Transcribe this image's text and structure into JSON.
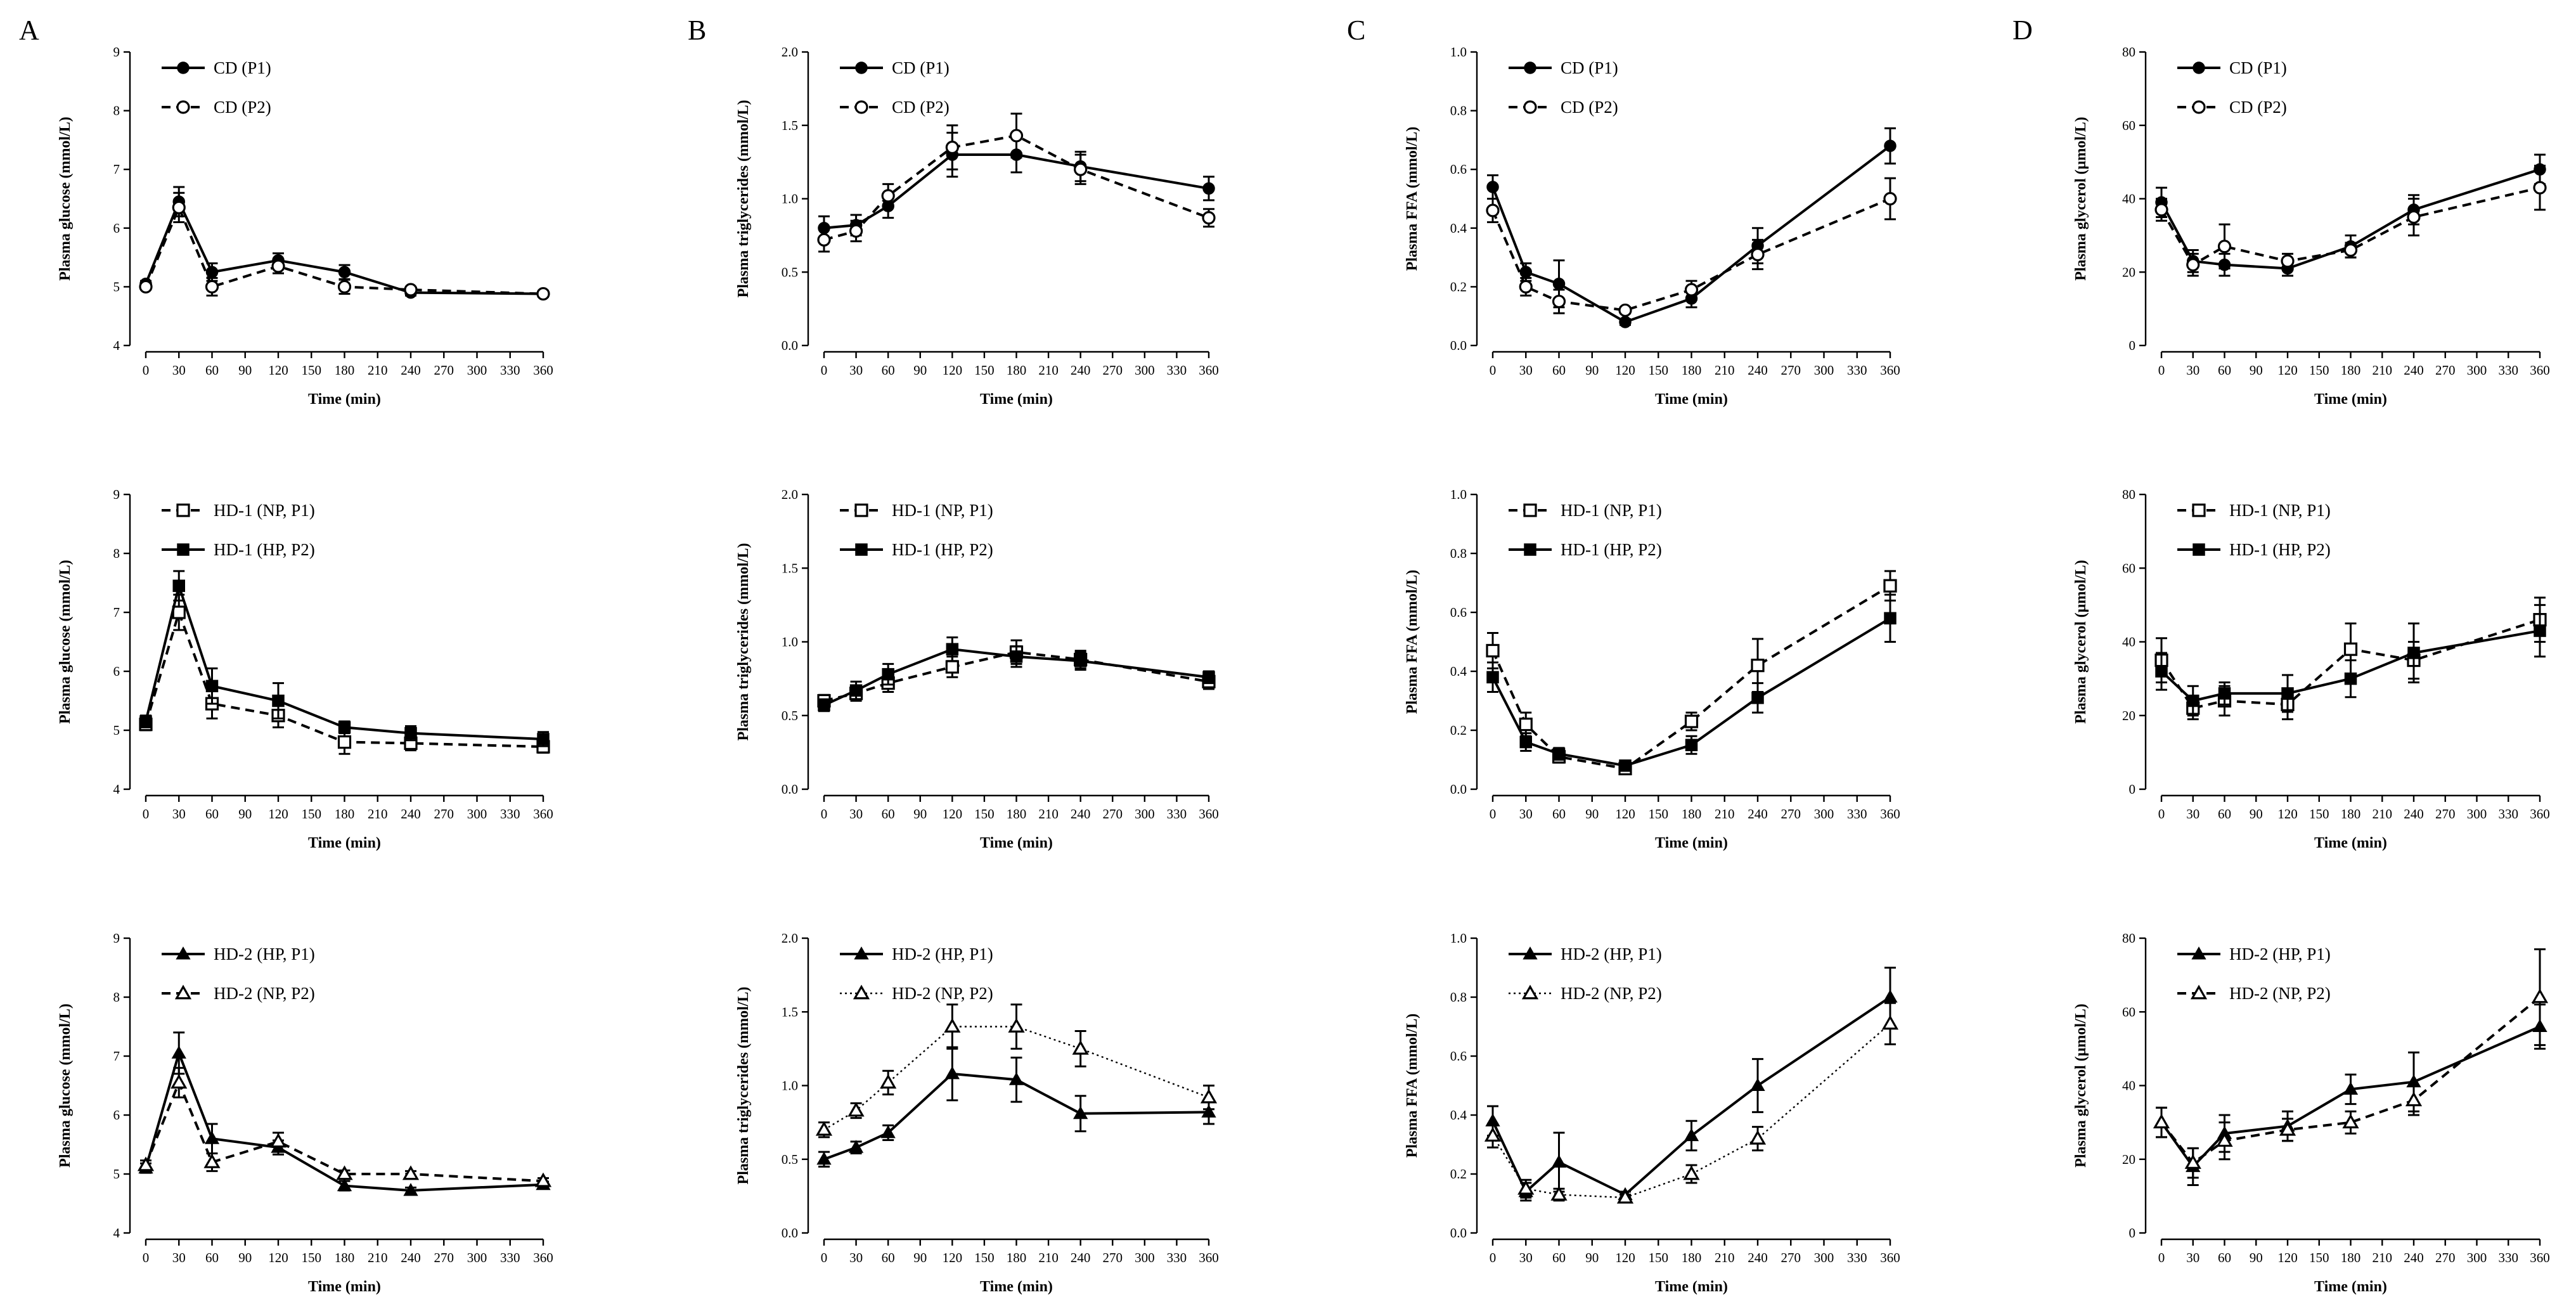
{
  "panel_labels": [
    "A",
    "B",
    "C",
    "D"
  ],
  "chart_data": [
    {
      "type": "line",
      "panel": "A",
      "row": 0,
      "title": "",
      "xlabel": "Time (min)",
      "ylabel": "Plasma glucose (mmol/L)",
      "ylim": [
        4,
        9
      ],
      "yticks": [
        "4",
        "5",
        "6",
        "7",
        "8",
        "9"
      ],
      "x": [
        0,
        30,
        60,
        120,
        180,
        240,
        360
      ],
      "xticks": [
        "0",
        "30",
        "60",
        "90",
        "120",
        "150",
        "180",
        "210",
        "240",
        "270",
        "300",
        "330",
        "360"
      ],
      "series": [
        {
          "name": "CD (P1)",
          "marker": "filled-circle",
          "dash": "solid",
          "values": [
            5.05,
            6.45,
            5.25,
            5.45,
            5.25,
            4.9,
            4.88
          ],
          "err": [
            0.05,
            0.25,
            0.15,
            0.12,
            0.12,
            0.05,
            0.05
          ]
        },
        {
          "name": "CD (P2)",
          "marker": "open-circle",
          "dash": "dashed",
          "values": [
            5.0,
            6.35,
            5.0,
            5.35,
            5.0,
            4.95,
            4.88
          ],
          "err": [
            0.05,
            0.25,
            0.15,
            0.12,
            0.12,
            0.05,
            0.05
          ]
        }
      ]
    },
    {
      "type": "line",
      "panel": "B",
      "row": 0,
      "title": "",
      "xlabel": "Time (min)",
      "ylabel": "Plasma triglycerides (mmol/L)",
      "ylim": [
        0,
        2
      ],
      "yticks": [
        "0.0",
        "0.5",
        "1.0",
        "1.5",
        "2.0"
      ],
      "x": [
        0,
        30,
        60,
        120,
        180,
        240,
        360
      ],
      "xticks": [
        "0",
        "30",
        "60",
        "90",
        "120",
        "150",
        "180",
        "210",
        "240",
        "270",
        "300",
        "330",
        "360"
      ],
      "series": [
        {
          "name": "CD (P1)",
          "marker": "filled-circle",
          "dash": "solid",
          "values": [
            0.8,
            0.82,
            0.95,
            1.3,
            1.3,
            1.22,
            1.07
          ],
          "err": [
            0.08,
            0.07,
            0.08,
            0.15,
            0.12,
            0.1,
            0.08
          ]
        },
        {
          "name": "CD (P2)",
          "marker": "open-circle",
          "dash": "dashed",
          "values": [
            0.72,
            0.78,
            1.02,
            1.35,
            1.43,
            1.2,
            0.87
          ],
          "err": [
            0.08,
            0.07,
            0.08,
            0.15,
            0.15,
            0.1,
            0.06
          ]
        }
      ]
    },
    {
      "type": "line",
      "panel": "C",
      "row": 0,
      "title": "",
      "xlabel": "Time (min)",
      "ylabel": "Plasma FFA (mmol/L)",
      "ylim": [
        0,
        1
      ],
      "yticks": [
        "0.0",
        "0.2",
        "0.4",
        "0.6",
        "0.8",
        "1.0"
      ],
      "x": [
        0,
        30,
        60,
        120,
        180,
        240,
        360
      ],
      "xticks": [
        "0",
        "30",
        "60",
        "90",
        "120",
        "150",
        "180",
        "210",
        "240",
        "270",
        "300",
        "330",
        "360"
      ],
      "series": [
        {
          "name": "CD (P1)",
          "marker": "filled-circle",
          "dash": "solid",
          "values": [
            0.54,
            0.25,
            0.21,
            0.08,
            0.16,
            0.34,
            0.68
          ],
          "err": [
            0.04,
            0.03,
            0.08,
            0.01,
            0.03,
            0.06,
            0.06
          ]
        },
        {
          "name": "CD (P2)",
          "marker": "open-circle",
          "dash": "dashed",
          "values": [
            0.46,
            0.2,
            0.15,
            0.12,
            0.19,
            0.31,
            0.5
          ],
          "err": [
            0.04,
            0.03,
            0.04,
            0.01,
            0.03,
            0.05,
            0.07
          ]
        }
      ]
    },
    {
      "type": "line",
      "panel": "D",
      "row": 0,
      "title": "",
      "xlabel": "Time (min)",
      "ylabel": "Plasma glycerol (μmol/L)",
      "ylim": [
        0,
        80
      ],
      "yticks": [
        "0",
        "20",
        "40",
        "60",
        "80"
      ],
      "x": [
        0,
        30,
        60,
        120,
        180,
        240,
        360
      ],
      "xticks": [
        "0",
        "30",
        "60",
        "90",
        "120",
        "150",
        "180",
        "210",
        "240",
        "270",
        "300",
        "330",
        "360"
      ],
      "series": [
        {
          "name": "CD (P1)",
          "marker": "filled-circle",
          "dash": "solid",
          "values": [
            39,
            23,
            22,
            21,
            27,
            37,
            48
          ],
          "err": [
            4,
            3,
            3,
            2,
            3,
            4,
            4
          ]
        },
        {
          "name": "CD (P2)",
          "marker": "open-circle",
          "dash": "dashed",
          "values": [
            37,
            22,
            27,
            23,
            26,
            35,
            43
          ],
          "err": [
            3,
            3,
            6,
            2,
            2,
            5,
            6
          ]
        }
      ]
    },
    {
      "type": "line",
      "panel": "A",
      "row": 1,
      "title": "",
      "xlabel": "Time (min)",
      "ylabel": "Plasma glucose (mmol/L)",
      "ylim": [
        4,
        9
      ],
      "yticks": [
        "4",
        "5",
        "6",
        "7",
        "8",
        "9"
      ],
      "x": [
        0,
        30,
        60,
        120,
        180,
        240,
        360
      ],
      "xticks": [
        "0",
        "30",
        "60",
        "90",
        "120",
        "150",
        "180",
        "210",
        "240",
        "270",
        "300",
        "330",
        "360"
      ],
      "series": [
        {
          "name": "HD-1 (NP, P1)",
          "marker": "open-square",
          "dash": "dashed",
          "values": [
            5.1,
            7.0,
            5.45,
            5.25,
            4.8,
            4.78,
            4.72
          ],
          "err": [
            0.1,
            0.3,
            0.25,
            0.2,
            0.2,
            0.12,
            0.1
          ]
        },
        {
          "name": "HD-1 (HP, P2)",
          "marker": "filled-square",
          "dash": "solid",
          "values": [
            5.15,
            7.45,
            5.75,
            5.5,
            5.05,
            4.95,
            4.85
          ],
          "err": [
            0.1,
            0.25,
            0.3,
            0.3,
            0.1,
            0.12,
            0.12
          ]
        }
      ]
    },
    {
      "type": "line",
      "panel": "B",
      "row": 1,
      "title": "",
      "xlabel": "Time (min)",
      "ylabel": "Plasma triglycerides (mmol/L)",
      "ylim": [
        0,
        2
      ],
      "yticks": [
        "0.0",
        "0.5",
        "1.0",
        "1.5",
        "2.0"
      ],
      "x": [
        0,
        30,
        60,
        120,
        180,
        240,
        360
      ],
      "xticks": [
        "0",
        "30",
        "60",
        "90",
        "120",
        "150",
        "180",
        "210",
        "240",
        "270",
        "300",
        "330",
        "360"
      ],
      "series": [
        {
          "name": "HD-1 (NP, P1)",
          "marker": "open-square",
          "dash": "dashed",
          "values": [
            0.6,
            0.65,
            0.72,
            0.83,
            0.93,
            0.88,
            0.73
          ],
          "err": [
            0.04,
            0.05,
            0.06,
            0.07,
            0.08,
            0.06,
            0.05
          ]
        },
        {
          "name": "HD-1 (HP, P2)",
          "marker": "filled-square",
          "dash": "solid",
          "values": [
            0.57,
            0.67,
            0.78,
            0.95,
            0.9,
            0.87,
            0.76
          ],
          "err": [
            0.04,
            0.06,
            0.07,
            0.08,
            0.07,
            0.06,
            0.04
          ]
        }
      ]
    },
    {
      "type": "line",
      "panel": "C",
      "row": 1,
      "title": "",
      "xlabel": "Time (min)",
      "ylabel": "Plasma FFA (mmol/L)",
      "ylim": [
        0,
        1
      ],
      "yticks": [
        "0.0",
        "0.2",
        "0.4",
        "0.6",
        "0.8",
        "1.0"
      ],
      "x": [
        0,
        30,
        60,
        120,
        180,
        240,
        360
      ],
      "xticks": [
        "0",
        "30",
        "60",
        "90",
        "120",
        "150",
        "180",
        "210",
        "240",
        "270",
        "300",
        "330",
        "360"
      ],
      "series": [
        {
          "name": "HD-1 (NP, P1)",
          "marker": "open-square",
          "dash": "dashed",
          "values": [
            0.47,
            0.22,
            0.11,
            0.07,
            0.23,
            0.42,
            0.69
          ],
          "err": [
            0.06,
            0.04,
            0.02,
            0.01,
            0.03,
            0.09,
            0.05
          ]
        },
        {
          "name": "HD-1 (HP, P2)",
          "marker": "filled-square",
          "dash": "solid",
          "values": [
            0.38,
            0.16,
            0.12,
            0.08,
            0.15,
            0.31,
            0.58
          ],
          "err": [
            0.05,
            0.03,
            0.02,
            0.01,
            0.03,
            0.05,
            0.08
          ]
        }
      ]
    },
    {
      "type": "line",
      "panel": "D",
      "row": 1,
      "title": "",
      "xlabel": "Time (min)",
      "ylabel": "Plasma glycerol (μmol/L)",
      "ylim": [
        0,
        80
      ],
      "yticks": [
        "0",
        "20",
        "40",
        "60",
        "80"
      ],
      "x": [
        0,
        30,
        60,
        120,
        180,
        240,
        360
      ],
      "xticks": [
        "0",
        "30",
        "60",
        "90",
        "120",
        "150",
        "180",
        "210",
        "240",
        "270",
        "300",
        "330",
        "360"
      ],
      "series": [
        {
          "name": "HD-1 (NP, P1)",
          "marker": "open-square",
          "dash": "dashed",
          "values": [
            35,
            22,
            24,
            23,
            38,
            35,
            46
          ],
          "err": [
            6,
            3,
            4,
            4,
            7,
            5,
            6
          ]
        },
        {
          "name": "HD-1 (HP, P2)",
          "marker": "filled-square",
          "dash": "solid",
          "values": [
            32,
            24,
            26,
            26,
            30,
            37,
            43
          ],
          "err": [
            5,
            4,
            3,
            5,
            5,
            8,
            7
          ]
        }
      ]
    },
    {
      "type": "line",
      "panel": "A",
      "row": 2,
      "title": "",
      "xlabel": "Time (min)",
      "ylabel": "Plasma glucose (mmol/L)",
      "ylim": [
        4,
        9
      ],
      "yticks": [
        "4",
        "5",
        "6",
        "7",
        "8",
        "9"
      ],
      "x": [
        0,
        30,
        60,
        120,
        180,
        240,
        360
      ],
      "xticks": [
        "0",
        "30",
        "60",
        "90",
        "120",
        "150",
        "180",
        "210",
        "240",
        "270",
        "300",
        "330",
        "360"
      ],
      "series": [
        {
          "name": "HD-2 (HP, P1)",
          "marker": "filled-triangle",
          "dash": "solid",
          "values": [
            5.1,
            7.05,
            5.6,
            5.45,
            4.8,
            4.72,
            4.82
          ],
          "err": [
            0.08,
            0.35,
            0.25,
            0.12,
            0.08,
            0.05,
            0.05
          ]
        },
        {
          "name": "HD-2 (NP, P2)",
          "marker": "open-triangle",
          "dash": "dashed",
          "values": [
            5.15,
            6.55,
            5.2,
            5.55,
            5.0,
            5.0,
            4.88
          ],
          "err": [
            0.08,
            0.25,
            0.15,
            0.15,
            0.06,
            0.05,
            0.05
          ]
        }
      ]
    },
    {
      "type": "line",
      "panel": "B",
      "row": 2,
      "title": "",
      "xlabel": "Time (min)",
      "ylabel": "Plasma triglycerides (mmol/L)",
      "ylim": [
        0,
        2
      ],
      "yticks": [
        "0.0",
        "0.5",
        "1.0",
        "1.5",
        "2.0"
      ],
      "x": [
        0,
        30,
        60,
        120,
        180,
        240,
        360
      ],
      "xticks": [
        "0",
        "30",
        "60",
        "90",
        "120",
        "150",
        "180",
        "210",
        "240",
        "270",
        "300",
        "330",
        "360"
      ],
      "series": [
        {
          "name": "HD-2 (HP, P1)",
          "marker": "filled-triangle",
          "dash": "solid",
          "values": [
            0.5,
            0.58,
            0.68,
            1.08,
            1.04,
            0.81,
            0.82
          ],
          "err": [
            0.05,
            0.04,
            0.05,
            0.18,
            0.15,
            0.12,
            0.08
          ]
        },
        {
          "name": "HD-2 (NP, P2)",
          "marker": "open-triangle",
          "dash": "dotted",
          "values": [
            0.7,
            0.83,
            1.02,
            1.4,
            1.4,
            1.25,
            0.92
          ],
          "err": [
            0.05,
            0.05,
            0.08,
            0.15,
            0.15,
            0.12,
            0.08
          ]
        }
      ]
    },
    {
      "type": "line",
      "panel": "C",
      "row": 2,
      "title": "",
      "xlabel": "Time (min)",
      "ylabel": "Plasma FFA (mmol/L)",
      "ylim": [
        0,
        1
      ],
      "yticks": [
        "0.0",
        "0.2",
        "0.4",
        "0.6",
        "0.8",
        "1.0"
      ],
      "x": [
        0,
        30,
        60,
        120,
        180,
        240,
        360
      ],
      "xticks": [
        "0",
        "30",
        "60",
        "90",
        "120",
        "150",
        "180",
        "210",
        "240",
        "270",
        "300",
        "330",
        "360"
      ],
      "series": [
        {
          "name": "HD-2 (HP, P1)",
          "marker": "filled-triangle",
          "dash": "solid",
          "values": [
            0.38,
            0.14,
            0.24,
            0.13,
            0.33,
            0.5,
            0.8
          ],
          "err": [
            0.05,
            0.03,
            0.1,
            0.01,
            0.05,
            0.09,
            0.1
          ]
        },
        {
          "name": "HD-2 (NP, P2)",
          "marker": "open-triangle",
          "dash": "dotted",
          "values": [
            0.33,
            0.15,
            0.13,
            0.12,
            0.2,
            0.32,
            0.71
          ],
          "err": [
            0.04,
            0.03,
            0.02,
            0.01,
            0.03,
            0.04,
            0.07
          ]
        }
      ]
    },
    {
      "type": "line",
      "panel": "D",
      "row": 2,
      "title": "",
      "xlabel": "Time (min)",
      "ylabel": "Plasma glycerol (μmol/L)",
      "ylim": [
        0,
        80
      ],
      "yticks": [
        "0",
        "20",
        "40",
        "60",
        "80"
      ],
      "x": [
        0,
        30,
        60,
        120,
        180,
        240,
        360
      ],
      "xticks": [
        "0",
        "30",
        "60",
        "90",
        "120",
        "150",
        "180",
        "210",
        "240",
        "270",
        "300",
        "330",
        "360"
      ],
      "series": [
        {
          "name": "HD-2 (HP, P1)",
          "marker": "filled-triangle",
          "dash": "solid",
          "values": [
            30,
            18,
            27,
            29,
            39,
            41,
            56
          ],
          "err": [
            4,
            5,
            5,
            4,
            4,
            8,
            6
          ]
        },
        {
          "name": "HD-2 (NP, P2)",
          "marker": "open-triangle",
          "dash": "dashed",
          "values": [
            30,
            19,
            25,
            28,
            30,
            36,
            64
          ],
          "err": [
            4,
            4,
            5,
            3,
            3,
            4,
            13
          ]
        }
      ]
    }
  ]
}
